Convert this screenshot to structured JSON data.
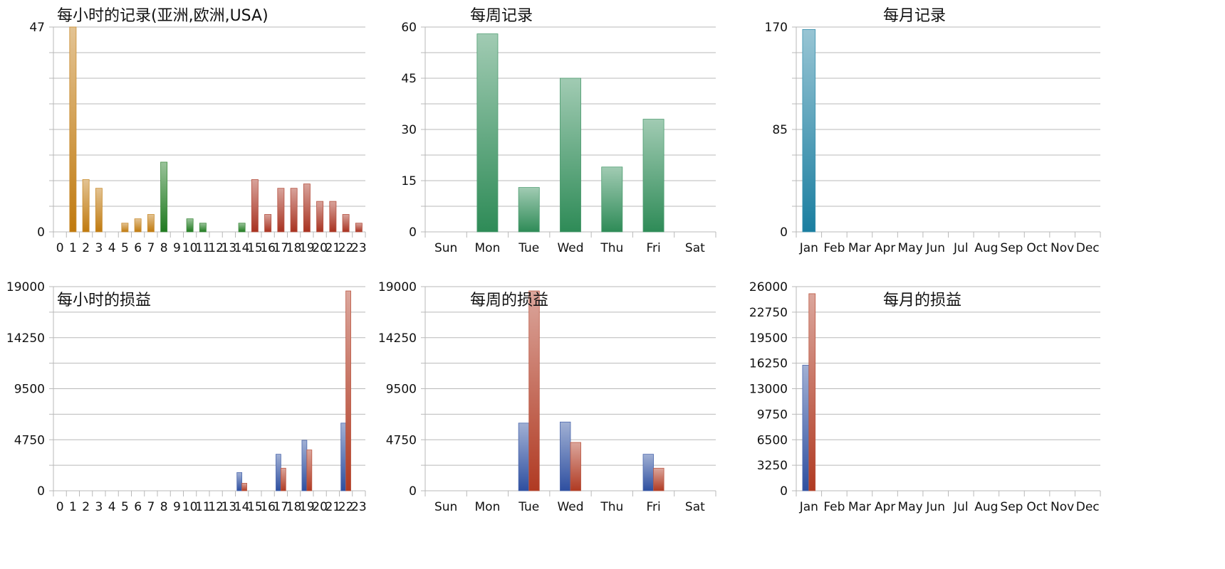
{
  "chart_data": [
    {
      "id": "hourly-records",
      "type": "bar",
      "title": "每小时的记录(亚洲,欧洲,USA)",
      "categories": [
        "0",
        "1",
        "2",
        "3",
        "4",
        "5",
        "6",
        "7",
        "8",
        "9",
        "10",
        "11",
        "12",
        "13",
        "14",
        "15",
        "16",
        "17",
        "18",
        "19",
        "20",
        "21",
        "22",
        "23"
      ],
      "ylim": [
        0,
        47
      ],
      "yticks": [
        "0",
        "47"
      ],
      "series": [
        {
          "values": [
            0,
            47,
            12,
            10,
            0,
            2,
            3,
            4,
            16,
            0,
            3,
            2,
            0,
            0,
            2,
            12,
            4,
            10,
            10,
            11,
            7,
            7,
            4,
            2
          ],
          "colors": [
            "#c07a0e",
            "#c07a0e",
            "#c07a0e",
            "#c07a0e",
            "#c07a0e",
            "#c07a0e",
            "#c07a0e",
            "#c07a0e",
            "#1f7a1f",
            "#1f7a1f",
            "#1f7a1f",
            "#1f7a1f",
            "#1f7a1f",
            "#1f7a1f",
            "#1f7a1f",
            "#a83220",
            "#a83220",
            "#a83220",
            "#a83220",
            "#a83220",
            "#a83220",
            "#a83220",
            "#a83220",
            "#a83220"
          ]
        }
      ],
      "grid": true
    },
    {
      "id": "weekly-records",
      "type": "bar",
      "title": "每周记录",
      "categories": [
        "Sun",
        "Mon",
        "Tue",
        "Wed",
        "Thu",
        "Fri",
        "Sat"
      ],
      "ylim": [
        0,
        60
      ],
      "yticks": [
        "0",
        "15",
        "30",
        "45",
        "60"
      ],
      "series": [
        {
          "values": [
            0,
            58,
            13,
            45,
            19,
            33,
            0
          ],
          "colors": [
            "#2e8b57"
          ]
        }
      ],
      "grid": true
    },
    {
      "id": "monthly-records",
      "type": "bar",
      "title": "每月记录",
      "categories": [
        "Jan",
        "Feb",
        "Mar",
        "Apr",
        "May",
        "Jun",
        "Jul",
        "Aug",
        "Sep",
        "Oct",
        "Nov",
        "Dec"
      ],
      "ylim": [
        0,
        170
      ],
      "yticks": [
        "0",
        "85",
        "170"
      ],
      "series": [
        {
          "values": [
            168,
            0,
            0,
            0,
            0,
            0,
            0,
            0,
            0,
            0,
            0,
            0
          ],
          "colors": [
            "#1a7ea0"
          ]
        }
      ],
      "grid": true
    },
    {
      "id": "hourly-pnl",
      "type": "bar",
      "title": "每小时的损益",
      "categories": [
        "0",
        "1",
        "2",
        "3",
        "4",
        "5",
        "6",
        "7",
        "8",
        "9",
        "10",
        "11",
        "12",
        "13",
        "14",
        "15",
        "16",
        "17",
        "18",
        "19",
        "20",
        "21",
        "22",
        "23"
      ],
      "ylim": [
        0,
        19000
      ],
      "yticks": [
        "0",
        "4750",
        "9500",
        "14250",
        "19000"
      ],
      "series": [
        {
          "values": [
            0,
            0,
            0,
            0,
            0,
            0,
            0,
            0,
            0,
            0,
            0,
            0,
            0,
            0,
            1700,
            0,
            0,
            3400,
            0,
            4700,
            0,
            0,
            6300,
            0
          ],
          "colors": [
            "#2e4fa0"
          ]
        },
        {
          "values": [
            0,
            0,
            0,
            0,
            0,
            0,
            0,
            0,
            0,
            0,
            0,
            0,
            0,
            0,
            700,
            0,
            0,
            2100,
            0,
            3800,
            0,
            0,
            18600,
            0
          ],
          "colors": [
            "#b03a22"
          ]
        }
      ],
      "grid": true
    },
    {
      "id": "weekly-pnl",
      "type": "bar",
      "title": "每周的损益",
      "categories": [
        "Sun",
        "Mon",
        "Tue",
        "Wed",
        "Thu",
        "Fri",
        "Sat"
      ],
      "ylim": [
        0,
        19000
      ],
      "yticks": [
        "0",
        "4750",
        "9500",
        "14250",
        "19000"
      ],
      "series": [
        {
          "values": [
            0,
            0,
            6300,
            6400,
            0,
            3400,
            0
          ],
          "colors": [
            "#2e4fa0"
          ]
        },
        {
          "values": [
            0,
            0,
            18600,
            4500,
            0,
            2100,
            0
          ],
          "colors": [
            "#b03a22"
          ]
        }
      ],
      "grid": true
    },
    {
      "id": "monthly-pnl",
      "type": "bar",
      "title": "每月的损益",
      "categories": [
        "Jan",
        "Feb",
        "Mar",
        "Apr",
        "May",
        "Jun",
        "Jul",
        "Aug",
        "Sep",
        "Oct",
        "Nov",
        "Dec"
      ],
      "ylim": [
        0,
        26000
      ],
      "yticks": [
        "0",
        "3250",
        "6500",
        "9750",
        "13000",
        "16250",
        "19500",
        "22750",
        "26000"
      ],
      "series": [
        {
          "values": [
            16000,
            0,
            0,
            0,
            0,
            0,
            0,
            0,
            0,
            0,
            0,
            0
          ],
          "colors": [
            "#2e4fa0"
          ]
        },
        {
          "values": [
            25100,
            0,
            0,
            0,
            0,
            0,
            0,
            0,
            0,
            0,
            0,
            0
          ],
          "colors": [
            "#b03a22"
          ]
        }
      ],
      "grid": true
    }
  ]
}
